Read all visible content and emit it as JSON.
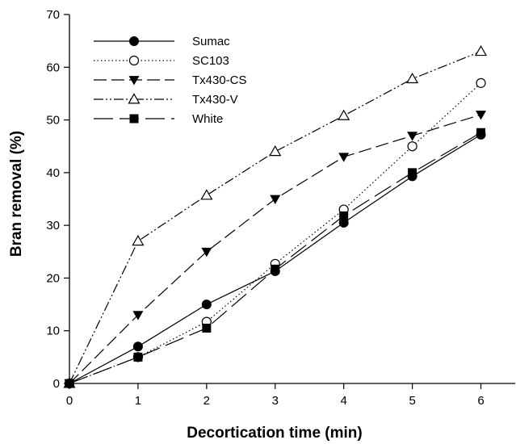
{
  "chart_data": {
    "type": "line",
    "title": "",
    "xlabel": "Decortication time (min)",
    "ylabel": "Bran removal (%)",
    "xlim": [
      0,
      6.5
    ],
    "ylim": [
      0,
      70
    ],
    "xticks": [
      0,
      1,
      2,
      3,
      4,
      5,
      6
    ],
    "yticks": [
      0,
      10,
      20,
      30,
      40,
      50,
      60,
      70
    ],
    "x": [
      0,
      1,
      2,
      3,
      4,
      5,
      6
    ],
    "grid": false,
    "legend_position": "top-left",
    "series": [
      {
        "name": "Sumac",
        "values": [
          0,
          7,
          15,
          21.3,
          30.5,
          39.3,
          47.2
        ],
        "marker": "filled-circle",
        "linestyle": "solid"
      },
      {
        "name": "SC103",
        "values": [
          0,
          5,
          11.7,
          22.7,
          33,
          45,
          57
        ],
        "marker": "open-circle",
        "linestyle": "dotted"
      },
      {
        "name": "Tx430-CS",
        "values": [
          0,
          13,
          25,
          35,
          43,
          47,
          51
        ],
        "marker": "filled-triangle-down",
        "linestyle": "dashed"
      },
      {
        "name": "Tx430-V",
        "values": [
          0,
          27,
          35.7,
          44,
          50.8,
          57.8,
          63
        ],
        "marker": "open-triangle-up",
        "linestyle": "dash-dot-dot"
      },
      {
        "name": "White",
        "values": [
          0,
          5,
          10.5,
          21.7,
          31.8,
          40,
          47.6
        ],
        "marker": "filled-square",
        "linestyle": "long-dash"
      }
    ]
  }
}
